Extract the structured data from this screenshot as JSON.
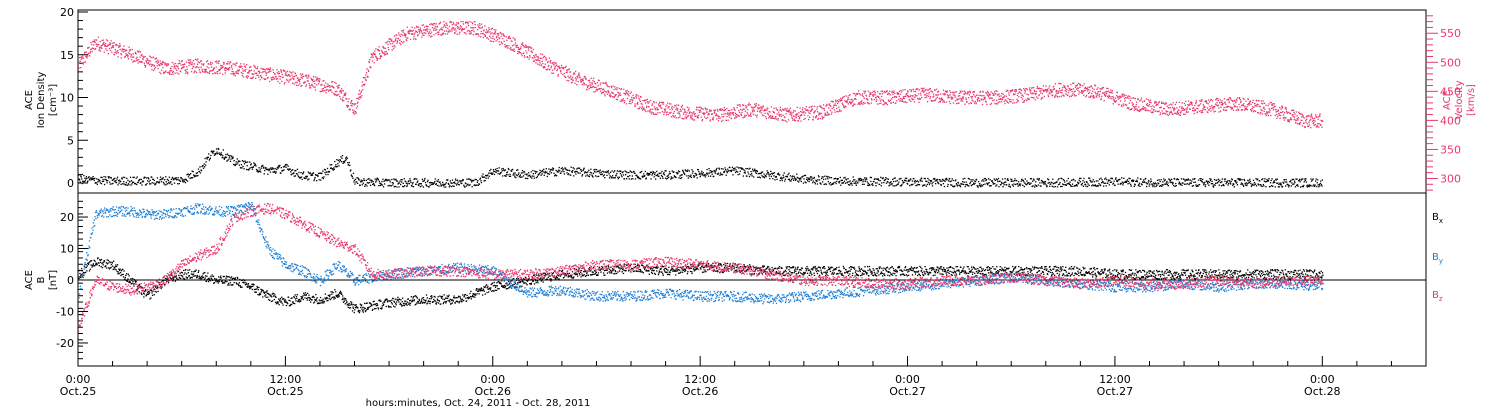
{
  "chart_data": [
    {
      "type": "scatter",
      "panel": "top",
      "ylabel_left": [
        "ACE",
        "Ion Density",
        "[cm⁻³]"
      ],
      "ylabel_right": [
        "ACE",
        "Velocity",
        "[km/s]"
      ],
      "ylim_left": [
        0,
        20
      ],
      "ylim_right": [
        275,
        590
      ],
      "yticks_left": [
        "0",
        "5",
        "10",
        "15",
        "20"
      ],
      "yticks_right": [
        "300",
        "350",
        "400",
        "450",
        "500",
        "550"
      ],
      "series": [
        {
          "name": "Velocity",
          "axis": "right",
          "color": "#e8386b",
          "x": [
            0,
            1,
            3,
            5,
            7,
            9,
            11,
            13,
            15,
            16,
            17,
            19,
            21,
            23,
            25,
            27,
            29,
            31,
            33,
            35,
            37,
            39,
            41,
            43,
            45,
            47,
            49,
            51,
            53,
            55,
            57,
            59,
            61,
            63,
            65,
            67,
            69,
            71,
            72
          ],
          "y": [
            495,
            535,
            515,
            490,
            495,
            490,
            480,
            470,
            455,
            420,
            510,
            550,
            560,
            560,
            535,
            500,
            470,
            450,
            425,
            415,
            410,
            420,
            410,
            415,
            440,
            440,
            445,
            440,
            440,
            445,
            455,
            450,
            430,
            420,
            425,
            430,
            420,
            400,
            400
          ]
        },
        {
          "name": "Ion Density",
          "axis": "left",
          "color": "#000000",
          "x": [
            0,
            2,
            4,
            6,
            7,
            7.5,
            8,
            9,
            10,
            11,
            12,
            13,
            14,
            15,
            15.5,
            16,
            18,
            20,
            23,
            24,
            26,
            28,
            30,
            32,
            34,
            36,
            38,
            40,
            42,
            44,
            48,
            52,
            56,
            60,
            64,
            68,
            72
          ],
          "y": [
            0.5,
            0.3,
            0.3,
            0.4,
            1.5,
            3.0,
            4.0,
            2.5,
            2.0,
            1.5,
            1.8,
            0.9,
            0.8,
            2.5,
            3.0,
            0.2,
            0.1,
            0.1,
            0.1,
            1.5,
            1.0,
            1.5,
            1.2,
            1.0,
            1.0,
            1.2,
            1.5,
            1.0,
            0.5,
            0.3,
            0.2,
            0.1,
            0.1,
            0.2,
            0.1,
            0.1,
            0.1
          ]
        }
      ]
    },
    {
      "type": "scatter",
      "panel": "bottom",
      "ylabel_left": [
        "ACE",
        "B",
        "[nT]"
      ],
      "ylim": [
        -27,
        27
      ],
      "yticks": [
        "-20",
        "-10",
        "0",
        "10",
        "20"
      ],
      "legend_position": "right",
      "series": [
        {
          "name": "Bx",
          "color": "#000000",
          "x": [
            0,
            1,
            2,
            3,
            4,
            5,
            6,
            7,
            8,
            9,
            10,
            11,
            12,
            13,
            14,
            15,
            16,
            17,
            18,
            20,
            22,
            24,
            26,
            28,
            30,
            32,
            34,
            36,
            38,
            40,
            42,
            44,
            46,
            48,
            50,
            52,
            54,
            56,
            58,
            60,
            62,
            64,
            66,
            68,
            70,
            72
          ],
          "y": [
            2,
            6,
            5,
            0,
            -5,
            0,
            2,
            2,
            0,
            0,
            -2,
            -5,
            -7,
            -5,
            -6,
            -4,
            -9,
            -8,
            -7,
            -6,
            -6,
            -2,
            0,
            2,
            3,
            4,
            3,
            4,
            4,
            3,
            3,
            3,
            3,
            3,
            3,
            3,
            3,
            3,
            3,
            2,
            2,
            2,
            2,
            2,
            2,
            2
          ]
        },
        {
          "name": "By",
          "color": "#1e7fd6",
          "x": [
            0,
            1,
            2,
            3,
            4,
            5,
            6,
            7,
            8,
            9,
            10,
            11,
            12,
            13,
            14,
            15,
            16,
            17,
            18,
            20,
            22,
            24,
            26,
            28,
            30,
            32,
            34,
            36,
            38,
            40,
            42,
            44,
            46,
            48,
            50,
            52,
            54,
            56,
            58,
            60,
            62,
            64,
            66,
            68,
            70,
            72
          ],
          "y": [
            -5,
            21,
            22,
            22,
            21,
            21,
            22,
            23,
            22,
            22,
            24,
            10,
            5,
            3,
            0,
            5,
            0,
            1,
            2,
            3,
            4,
            3,
            -4,
            -3,
            -5,
            -5,
            -4,
            -5,
            -5,
            -6,
            -5,
            -4,
            -3,
            -2,
            -1,
            0,
            1,
            0,
            -1,
            -2,
            -2,
            -1,
            -2,
            -1,
            -1,
            -2
          ]
        },
        {
          "name": "Bz",
          "color": "#e8386b",
          "x": [
            0,
            1,
            2,
            3,
            4,
            5,
            6,
            7,
            8,
            9,
            10,
            11,
            12,
            13,
            14,
            15,
            16,
            17,
            18,
            20,
            22,
            24,
            26,
            28,
            30,
            32,
            34,
            36,
            38,
            40,
            42,
            44,
            46,
            48,
            50,
            52,
            54,
            56,
            58,
            60,
            62,
            64,
            66,
            68,
            70,
            72
          ],
          "y": [
            -15,
            0,
            -2,
            -3,
            -2,
            0,
            5,
            8,
            10,
            20,
            22,
            23,
            21,
            18,
            15,
            12,
            10,
            2,
            2,
            3,
            3,
            2,
            2,
            3,
            5,
            5,
            6,
            5,
            4,
            2,
            0,
            0,
            -1,
            -1,
            0,
            0,
            1,
            0,
            -1,
            0,
            -1,
            -1,
            0,
            -1,
            0,
            0
          ]
        }
      ]
    }
  ],
  "x_axis": {
    "ticks": [
      {
        "time": "0:00",
        "date": "Oct.25"
      },
      {
        "time": "12:00",
        "date": "Oct.25"
      },
      {
        "time": "0:00",
        "date": "Oct.26"
      },
      {
        "time": "12:00",
        "date": "Oct.26"
      },
      {
        "time": "0:00",
        "date": "Oct.27"
      },
      {
        "time": "12:00",
        "date": "Oct.27"
      },
      {
        "time": "0:00",
        "date": "Oct.28"
      }
    ],
    "tick_hours": [
      0,
      12,
      24,
      36,
      48,
      60,
      72
    ],
    "range_hours": [
      0,
      78
    ],
    "label": "hours:minutes, Oct. 24, 2011 - Oct. 28, 2011"
  },
  "legend": {
    "bx": "B",
    "bx_sub": "x",
    "by": "B",
    "by_sub": "y",
    "bz": "B",
    "bz_sub": "z"
  },
  "colors": {
    "magenta": "#e8386b",
    "blue": "#1e7fd6",
    "black": "#000000"
  }
}
